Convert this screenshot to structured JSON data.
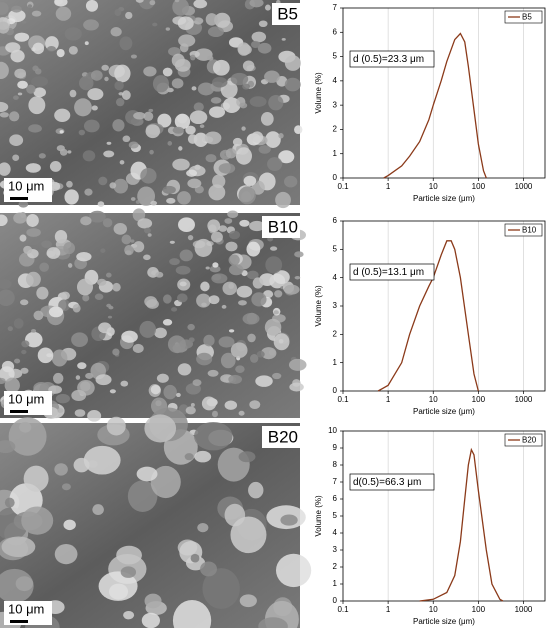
{
  "images": [
    {
      "label": "B5",
      "scale_bar": "10 μm"
    },
    {
      "label": "B10",
      "scale_bar": "10 μm"
    },
    {
      "label": "B20",
      "scale_bar": "10 μm"
    }
  ],
  "chart_data": [
    {
      "type": "line",
      "xlabel": "Particle size (μm)",
      "ylabel": "Volume (%)",
      "annotation": "d (0.5)=23.3 μm",
      "x": [
        0.8,
        1,
        2,
        3,
        5,
        8,
        10,
        15,
        20,
        30,
        40,
        50,
        60,
        80,
        100,
        130,
        150
      ],
      "series": [
        {
          "name": "B5",
          "color": "#8b3a1a",
          "values": [
            0,
            0.1,
            0.5,
            0.9,
            1.5,
            2.4,
            3.0,
            4.0,
            4.8,
            5.7,
            5.95,
            5.6,
            4.6,
            2.8,
            1.4,
            0.3,
            0
          ]
        }
      ],
      "xlim": [
        0.1,
        3000
      ],
      "xticks": [
        0.1,
        1,
        10,
        100,
        1000
      ],
      "log_x": true,
      "ylim": [
        0,
        7
      ],
      "yticks": [
        0,
        1,
        2,
        3,
        4,
        5,
        6,
        7
      ],
      "grid": true,
      "legend": "top-right"
    },
    {
      "type": "line",
      "xlabel": "Particle size (μm)",
      "ylabel": "Volume (%)",
      "annotation": "d (0.5)=13.1 μm",
      "x": [
        0.6,
        1,
        2,
        3,
        5,
        8,
        10,
        15,
        20,
        25,
        30,
        40,
        60,
        80,
        100
      ],
      "series": [
        {
          "name": "B10",
          "color": "#8b3a1a",
          "values": [
            0,
            0.2,
            1.0,
            2.0,
            3.0,
            3.7,
            4.0,
            4.8,
            5.3,
            5.3,
            5.0,
            4.0,
            2.0,
            0.6,
            0
          ]
        }
      ],
      "xlim": [
        0.1,
        3000
      ],
      "xticks": [
        0.1,
        1,
        10,
        100,
        1000
      ],
      "log_x": true,
      "ylim": [
        0,
        6
      ],
      "yticks": [
        0,
        1,
        2,
        3,
        4,
        5,
        6
      ],
      "grid": true,
      "legend": "top-right"
    },
    {
      "type": "line",
      "xlabel": "Particle size (μm)",
      "ylabel": "Volume (%)",
      "annotation": "d(0.5)=66.3 μm",
      "x": [
        5,
        10,
        20,
        30,
        40,
        50,
        60,
        70,
        80,
        100,
        150,
        200,
        300,
        350
      ],
      "series": [
        {
          "name": "B20",
          "color": "#8b3a1a",
          "values": [
            0,
            0.1,
            0.5,
            1.5,
            3.5,
            6.0,
            8.0,
            8.9,
            8.6,
            6.5,
            3.0,
            1.0,
            0.1,
            0
          ]
        }
      ],
      "xlim": [
        0.1,
        3000
      ],
      "xticks": [
        0.1,
        1,
        10,
        100,
        1000
      ],
      "log_x": true,
      "ylim": [
        0,
        10
      ],
      "yticks": [
        0,
        1,
        2,
        3,
        4,
        5,
        6,
        7,
        8,
        9,
        10
      ],
      "grid": true,
      "legend": "top-right"
    }
  ]
}
